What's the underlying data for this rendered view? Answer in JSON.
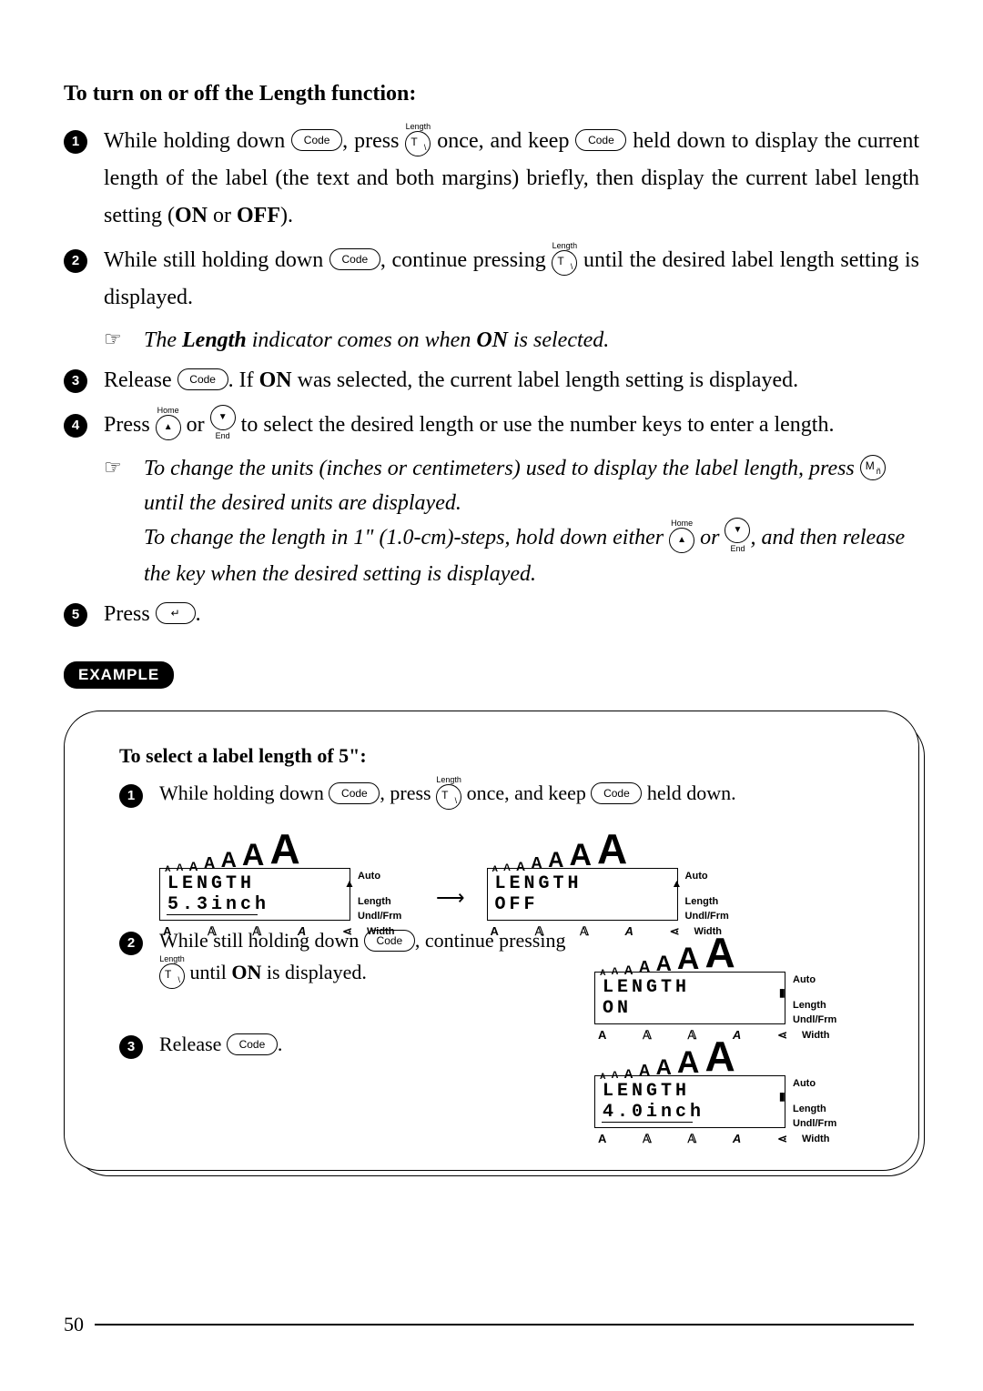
{
  "heading": "To turn on or off the Length function:",
  "keys": {
    "code": "Code",
    "t_over": "Length",
    "t_main": "T",
    "t_sub": "\\",
    "home_over": "Home",
    "end_over": "End",
    "m_main": "M",
    "m_sub": "ñ"
  },
  "steps": {
    "s1a": "While holding down ",
    "s1b": ", press ",
    "s1c": " once, and keep ",
    "s1d": " held down to display the current length of the label (the text and both margins) briefly, then display the current label length setting (",
    "on": "ON",
    "or": " or ",
    "off": "OFF",
    "s1e": ").",
    "s2a": "While still holding down ",
    "s2b": ", continue pressing ",
    "s2c": " until the desired label length setting is displayed.",
    "note1a": "The ",
    "note1b": "Length",
    "note1c": " indicator comes on when ",
    "note1d": "ON",
    "note1e": " is selected.",
    "s3a": "Release ",
    "s3b": ". If ",
    "s3c": " was selected, the current label length setting is displayed.",
    "s4a": "Press ",
    "s4b": " or ",
    "s4c": " to select the desired length or use the number keys to enter a length.",
    "note2a": "To change the units (inches or centimeters) used to display the label length, press ",
    "note2b": " until the desired units are displayed.",
    "note2c": "To change the length in 1\" (1.0-cm)-steps, hold down either ",
    "note2d": " or ",
    "note2e": ", and then release the key when the desired setting is displayed.",
    "s5a": "Press ",
    "s5b": "."
  },
  "example_label": "EXAMPLE",
  "example": {
    "heading": "To select a label length of 5\":",
    "s1a": "While holding down ",
    "s1b": ", press ",
    "s1c": " once, and keep ",
    "s1d": " held down.",
    "s2a": "While still holding down ",
    "s2b": ", continue pressing ",
    "s2c": " until ",
    "s2d": "ON",
    "s2e": " is displayed.",
    "s3a": "Release ",
    "s3b": "."
  },
  "lcd": {
    "sizes": [
      "A",
      "A",
      "A",
      "A",
      "A",
      "A",
      "A"
    ],
    "auto": "Auto",
    "length_label": "Length",
    "undlfrm": "Undl/Frm",
    "width": "Width",
    "bottom": [
      "A",
      "𝔸",
      "𝔸",
      "A",
      "⋖"
    ],
    "displays": {
      "d1": {
        "l1": "LENGTH",
        "l2": "5.3inch",
        "underline": true,
        "mark": "▲"
      },
      "d2": {
        "l1": "LENGTH",
        "l2": "OFF",
        "underline": false,
        "mark": "▲"
      },
      "d3": {
        "l1": "LENGTH",
        "l2": "ON",
        "underline": false,
        "mark": "▮"
      },
      "d4": {
        "l1": "LENGTH",
        "l2": "4.0inch",
        "underline": true,
        "mark": "▮"
      }
    }
  },
  "page_number": "50"
}
